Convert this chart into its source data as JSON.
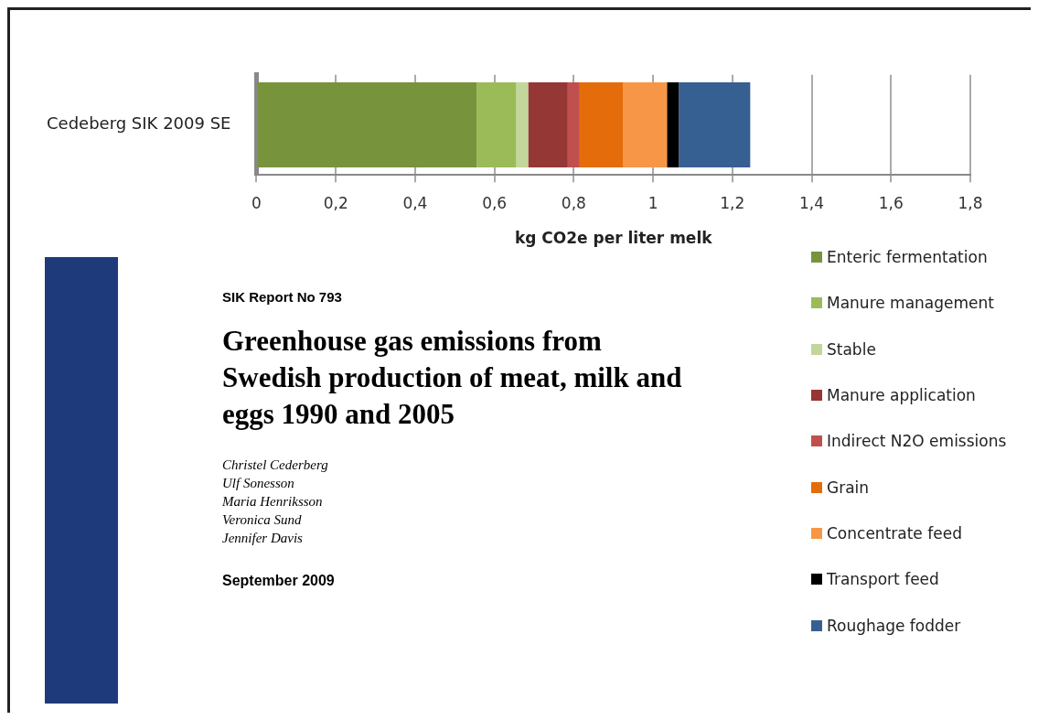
{
  "chart_data": {
    "type": "bar",
    "orientation": "horizontal",
    "stacked": true,
    "categories": [
      "Cedeberg SIK 2009 SE"
    ],
    "series": [
      {
        "name": "Enteric fermentation",
        "color": "#77933c",
        "values": [
          0.555
        ]
      },
      {
        "name": "Manure management",
        "color": "#9bbb59",
        "values": [
          0.1
        ]
      },
      {
        "name": "Stable",
        "color": "#c3d69b",
        "values": [
          0.03
        ]
      },
      {
        "name": "Manure application",
        "color": "#953735",
        "values": [
          0.1
        ]
      },
      {
        "name": "Indirect N2O emissions",
        "color": "#c0504d",
        "values": [
          0.03
        ]
      },
      {
        "name": "Grain",
        "color": "#e46c0a",
        "values": [
          0.11
        ]
      },
      {
        "name": "Concentrate feed",
        "color": "#f79646",
        "values": [
          0.11
        ]
      },
      {
        "name": "Transport feed",
        "color": "#000000",
        "values": [
          0.03
        ]
      },
      {
        "name": "Roughage fodder",
        "color": "#376092",
        "values": [
          0.18
        ]
      }
    ],
    "xlim": [
      0,
      1.8
    ],
    "xticks": [
      0,
      {
        "value": 0.2,
        "label": "0,2"
      },
      {
        "value": 0.4,
        "label": "0,4"
      },
      {
        "value": 0.6,
        "label": "0,6"
      },
      {
        "value": 0.8,
        "label": "0,8"
      },
      1,
      {
        "value": 1.2,
        "label": "1,2"
      },
      {
        "value": 1.4,
        "label": "1,4"
      },
      {
        "value": 1.6,
        "label": "1,6"
      },
      {
        "value": 1.8,
        "label": "1,8"
      }
    ],
    "xlabel": "kg CO2e per liter melk",
    "grid": "x",
    "legend": "bottom right",
    "annotations": [
      "SIK Report No 793",
      "Greenhouse gas emissions from Swedish production of meat, milk and eggs 1990 and 2005",
      "Christel Cederberg",
      "Ulf Sonesson",
      "Maria Henriksson",
      "Veronica Sund",
      "Jennifer Davis",
      "September 2009"
    ]
  }
}
